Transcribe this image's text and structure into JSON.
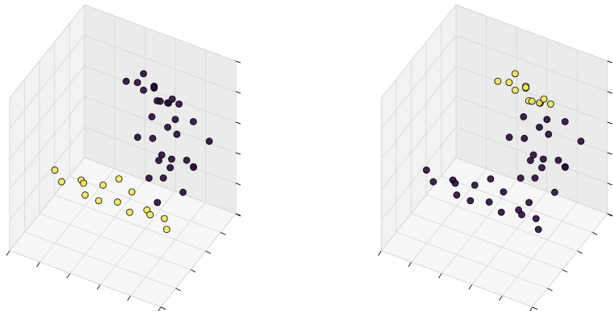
{
  "chart_data": [
    {
      "type": "scatter3d",
      "xlim": [
        0,
        1
      ],
      "ylim": [
        0,
        1
      ],
      "zlim": [
        0,
        1
      ],
      "xticks": [
        0,
        0.2,
        0.4,
        0.6,
        0.8,
        1
      ],
      "yticks": [
        0,
        0.2,
        0.4,
        0.6,
        0.8,
        1
      ],
      "zticks": [
        0,
        0.2,
        0.4,
        0.6,
        0.8,
        1
      ],
      "grid": true,
      "series": [
        {
          "color": "#2b0b3f",
          "x": [
            0.5,
            0.55,
            0.6,
            0.65,
            0.7,
            0.75,
            0.8,
            0.85,
            0.58,
            0.68,
            0.72,
            0.62,
            0.78,
            0.52,
            0.66,
            0.74,
            0.82,
            0.6,
            0.7,
            0.64,
            0.35,
            0.4,
            0.45,
            0.5,
            0.55,
            0.6,
            0.65,
            0.42,
            0.52,
            0.58,
            0.48,
            0.62
          ],
          "y": [
            0.7,
            0.8,
            0.65,
            0.9,
            0.75,
            0.85,
            0.7,
            0.95,
            0.95,
            0.6,
            1.0,
            0.78,
            0.88,
            0.85,
            0.72,
            0.65,
            0.8,
            0.9,
            0.82,
            0.7,
            0.85,
            0.9,
            0.88,
            0.92,
            0.86,
            0.9,
            0.95,
            0.94,
            0.88,
            0.84,
            0.96,
            0.92
          ],
          "z": [
            0.5,
            0.45,
            0.3,
            0.55,
            0.4,
            0.35,
            0.25,
            0.45,
            0.6,
            0.2,
            0.5,
            0.38,
            0.3,
            0.55,
            0.28,
            0.42,
            0.36,
            0.48,
            0.52,
            0.4,
            0.72,
            0.7,
            0.68,
            0.7,
            0.66,
            0.64,
            0.62,
            0.74,
            0.72,
            0.68,
            0.66,
            0.66
          ]
        },
        {
          "color": "#f2e55c",
          "x": [
            0.15,
            0.22,
            0.3,
            0.35,
            0.42,
            0.48,
            0.55,
            0.6,
            0.66,
            0.72,
            0.78,
            0.85,
            0.9,
            0.5,
            0.4
          ],
          "y": [
            0.3,
            0.25,
            0.35,
            0.28,
            0.4,
            0.22,
            0.33,
            0.42,
            0.27,
            0.38,
            0.3,
            0.35,
            0.28,
            0.45,
            0.2
          ],
          "z": [
            0.4,
            0.38,
            0.36,
            0.4,
            0.34,
            0.37,
            0.32,
            0.35,
            0.33,
            0.3,
            0.34,
            0.31,
            0.3,
            0.38,
            0.39
          ]
        }
      ]
    },
    {
      "type": "scatter3d",
      "xlim": [
        0,
        1
      ],
      "ylim": [
        0,
        1
      ],
      "zlim": [
        0,
        1
      ],
      "xticks": [
        0,
        0.2,
        0.4,
        0.6,
        0.8,
        1
      ],
      "yticks": [
        0,
        0.2,
        0.4,
        0.6,
        0.8,
        1
      ],
      "zticks": [
        0,
        0.2,
        0.4,
        0.6,
        0.8,
        1
      ],
      "grid": true,
      "series": [
        {
          "color": "#2b0b3f",
          "x": [
            0.5,
            0.55,
            0.6,
            0.65,
            0.7,
            0.75,
            0.8,
            0.85,
            0.58,
            0.68,
            0.72,
            0.62,
            0.78,
            0.52,
            0.66,
            0.74,
            0.82,
            0.6,
            0.7,
            0.64,
            0.15,
            0.22,
            0.3,
            0.35,
            0.42,
            0.48,
            0.55,
            0.6,
            0.66,
            0.72,
            0.78,
            0.85,
            0.9,
            0.5,
            0.4
          ],
          "y": [
            0.7,
            0.8,
            0.65,
            0.9,
            0.75,
            0.85,
            0.7,
            0.95,
            0.95,
            0.6,
            1.0,
            0.78,
            0.88,
            0.85,
            0.72,
            0.65,
            0.8,
            0.9,
            0.82,
            0.7,
            0.3,
            0.25,
            0.35,
            0.28,
            0.4,
            0.22,
            0.33,
            0.42,
            0.27,
            0.38,
            0.3,
            0.35,
            0.28,
            0.45,
            0.2
          ],
          "z": [
            0.5,
            0.45,
            0.3,
            0.55,
            0.4,
            0.35,
            0.25,
            0.45,
            0.6,
            0.2,
            0.5,
            0.38,
            0.3,
            0.55,
            0.28,
            0.42,
            0.36,
            0.48,
            0.52,
            0.4,
            0.4,
            0.38,
            0.36,
            0.4,
            0.34,
            0.37,
            0.32,
            0.35,
            0.33,
            0.3,
            0.34,
            0.31,
            0.3,
            0.38,
            0.39
          ]
        },
        {
          "color": "#f2e55c",
          "x": [
            0.35,
            0.4,
            0.45,
            0.5,
            0.55,
            0.6,
            0.65,
            0.42,
            0.52,
            0.58,
            0.48,
            0.62
          ],
          "y": [
            0.85,
            0.9,
            0.88,
            0.92,
            0.86,
            0.9,
            0.95,
            0.94,
            0.88,
            0.84,
            0.96,
            0.92
          ],
          "z": [
            0.72,
            0.7,
            0.68,
            0.7,
            0.66,
            0.64,
            0.62,
            0.74,
            0.72,
            0.68,
            0.66,
            0.66
          ]
        }
      ]
    }
  ]
}
